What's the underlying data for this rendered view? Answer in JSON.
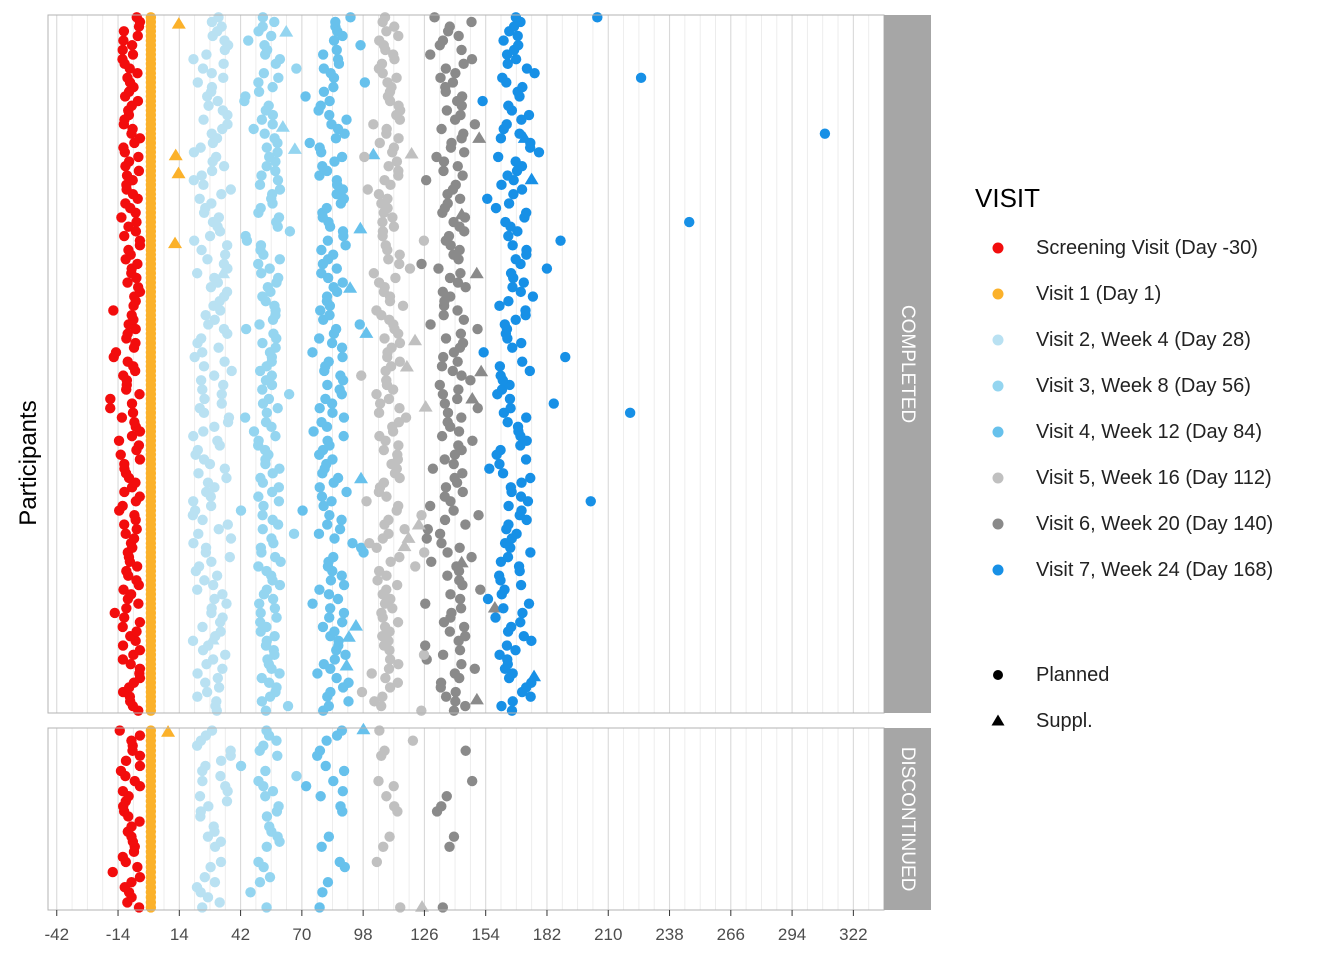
{
  "chart_data": {
    "type": "scatter",
    "ylabel": "Participants",
    "xlabel": "",
    "xlim": [
      -46,
      336
    ],
    "x_ticks": [
      -42,
      -14,
      14,
      42,
      70,
      98,
      126,
      154,
      182,
      210,
      238,
      266,
      294,
      322
    ],
    "x_tick_labels": [
      "-42",
      "-14",
      "14",
      "42",
      "70",
      "98",
      "126",
      "154",
      "182",
      "210",
      "238",
      "266",
      "294",
      "322"
    ],
    "grid": true,
    "legend_position": "right",
    "legend": {
      "visit_title": "VISIT",
      "visits": [
        {
          "label": "Screening Visit (Day -30)",
          "color": "#f20d0d"
        },
        {
          "label": "Visit 1 (Day 1)",
          "color": "#fbb12a"
        },
        {
          "label": "Visit 2, Week 4 (Day 28)",
          "color": "#b9e1f2"
        },
        {
          "label": "Visit 3, Week 8 (Day 56)",
          "color": "#94d5f0"
        },
        {
          "label": "Visit 4, Week 12 (Day 84)",
          "color": "#67c1ec"
        },
        {
          "label": "Visit 5, Week 16 (Day 112)",
          "color": "#c0c0c0"
        },
        {
          "label": "Visit 6, Week 20 (Day 140)",
          "color": "#8a8a8a"
        },
        {
          "label": "Visit 7, Week 24 (Day 168)",
          "color": "#1790e6"
        }
      ],
      "shapes": [
        {
          "label": "Planned",
          "shape": "circle"
        },
        {
          "label": "Suppl.",
          "shape": "triangle"
        }
      ]
    },
    "facets": [
      {
        "label": "COMPLETED",
        "participants": 150
      },
      {
        "label": "DISCONTINUED",
        "participants": 36
      }
    ],
    "visit_distributions": [
      {
        "visit": "Screening Visit (Day -30)",
        "typical_days": [
          -12,
          -4
        ],
        "min_day": -31,
        "max_day": -4
      },
      {
        "visit": "Visit 1 (Day 1)",
        "typical_days": [
          1,
          1
        ],
        "min_day": 1,
        "max_day": 1
      },
      {
        "visit": "Visit 2, Week 4 (Day 28)",
        "typical_days": [
          22,
          36
        ],
        "min_day": 20,
        "max_day": 38
      },
      {
        "visit": "Visit 3, Week 8 (Day 56)",
        "typical_days": [
          50,
          60
        ],
        "min_day": 40,
        "max_day": 70
      },
      {
        "visit": "Visit 4, Week 12 (Day 84)",
        "typical_days": [
          78,
          90
        ],
        "min_day": 68,
        "max_day": 100
      },
      {
        "visit": "Visit 5, Week 16 (Day 112)",
        "typical_days": [
          105,
          115
        ],
        "min_day": 96,
        "max_day": 126
      },
      {
        "visit": "Visit 6, Week 20 (Day 140)",
        "typical_days": [
          133,
          145
        ],
        "min_day": 124,
        "max_day": 152
      },
      {
        "visit": "Visit 7, Week 24 (Day 168)",
        "typical_days": [
          160,
          175
        ],
        "min_day": 152,
        "max_day": 309
      }
    ],
    "notable_points": [
      {
        "visit": "Visit 7, Week 24 (Day 168)",
        "day": 309,
        "facet": "COMPLETED",
        "participant": 125
      },
      {
        "visit": "Visit 7, Week 24 (Day 168)",
        "day": 247,
        "facet": "COMPLETED",
        "participant": 106
      },
      {
        "visit": "Visit 7, Week 24 (Day 168)",
        "day": 225,
        "facet": "COMPLETED",
        "participant": 137
      },
      {
        "visit": "Visit 7, Week 24 (Day 168)",
        "day": 220,
        "facet": "COMPLETED",
        "participant": 65
      },
      {
        "visit": "Visit 7, Week 24 (Day 168)",
        "day": 202,
        "facet": "COMPLETED",
        "participant": 46
      },
      {
        "visit": "Visit 7, Week 24 (Day 168)",
        "day": 205,
        "facet": "COMPLETED",
        "participant": 150
      }
    ]
  }
}
